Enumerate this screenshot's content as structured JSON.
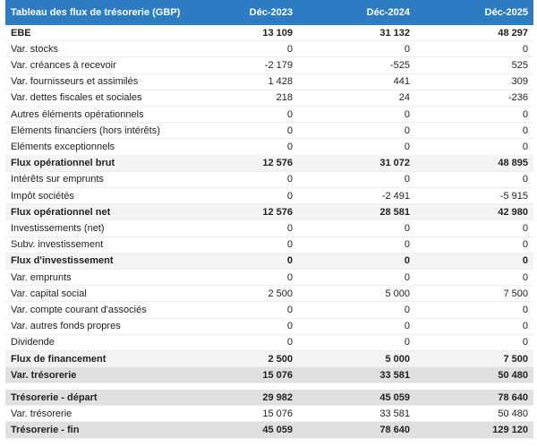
{
  "header": {
    "title": "Tableau des flux de trésorerie (GBP)",
    "columns": [
      "Déc-2023",
      "Déc-2024",
      "Déc-2025"
    ]
  },
  "table": {
    "rows": [
      {
        "label": "EBE",
        "values": [
          "13 109",
          "31 132",
          "48 297"
        ],
        "bold": true
      },
      {
        "label": "Var. stocks",
        "values": [
          "0",
          "0",
          "0"
        ]
      },
      {
        "label": "Var. créances à recevoir",
        "values": [
          "-2 179",
          "-525",
          "525"
        ]
      },
      {
        "label": "Var. fournisseurs et assimilés",
        "values": [
          "1 428",
          "441",
          "309"
        ]
      },
      {
        "label": "Var. dettes fiscales et sociales",
        "values": [
          "218",
          "24",
          "-236"
        ]
      },
      {
        "label": "Autres éléments opérationnels",
        "values": [
          "0",
          "0",
          "0"
        ]
      },
      {
        "label": "Eléments financiers (hors intérêts)",
        "values": [
          "0",
          "0",
          "0"
        ]
      },
      {
        "label": "Eléments exceptionnels",
        "values": [
          "0",
          "0",
          "0"
        ]
      },
      {
        "label": "Flux opérationnel brut",
        "values": [
          "12 576",
          "31 072",
          "48 895"
        ],
        "bold": true,
        "shade": "light"
      },
      {
        "label": "Intérêts sur emprunts",
        "values": [
          "0",
          "0",
          "0"
        ]
      },
      {
        "label": "Impôt sociétés",
        "values": [
          "0",
          "-2 491",
          "-5 915"
        ]
      },
      {
        "label": "Flux opérationnel net",
        "values": [
          "12 576",
          "28 581",
          "42 980"
        ],
        "bold": true,
        "shade": "light"
      },
      {
        "label": "Investissements (net)",
        "values": [
          "0",
          "0",
          "0"
        ]
      },
      {
        "label": "Subv. investissement",
        "values": [
          "0",
          "0",
          "0"
        ]
      },
      {
        "label": "Flux d'investissement",
        "values": [
          "0",
          "0",
          "0"
        ],
        "bold": true,
        "shade": "light"
      },
      {
        "label": "Var. emprunts",
        "values": [
          "0",
          "0",
          "0"
        ]
      },
      {
        "label": "Var. capital social",
        "values": [
          "2 500",
          "5 000",
          "7 500"
        ]
      },
      {
        "label": "Var. compte courant d'associés",
        "values": [
          "0",
          "0",
          "0"
        ]
      },
      {
        "label": "Var. autres fonds propres",
        "values": [
          "0",
          "0",
          "0"
        ]
      },
      {
        "label": "Dividende",
        "values": [
          "0",
          "0",
          "0"
        ]
      },
      {
        "label": "Flux de financement",
        "values": [
          "2 500",
          "5 000",
          "7 500"
        ],
        "bold": true,
        "shade": "light"
      },
      {
        "label": "Var. trésorerie",
        "values": [
          "15 076",
          "33 581",
          "50 480"
        ],
        "bold": true,
        "shade": "dark"
      }
    ]
  },
  "summary": {
    "rows": [
      {
        "label": "Trésorerie - départ",
        "values": [
          "29 982",
          "45 059",
          "78 640"
        ],
        "bold": true,
        "shade": "dark"
      },
      {
        "label": "Var. trésorerie",
        "values": [
          "15 076",
          "33 581",
          "50 480"
        ]
      },
      {
        "label": "Trésorerie - fin",
        "values": [
          "45 059",
          "78 640",
          "129 120"
        ],
        "bold": true,
        "shade": "dark"
      }
    ]
  }
}
